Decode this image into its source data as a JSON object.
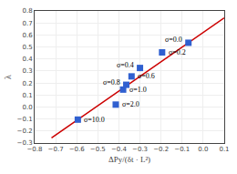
{
  "chart_data": {
    "type": "scatter",
    "xlabel": "ΔPy/(δt · L²)",
    "ylabel": "λ",
    "xlim": [
      -0.8,
      0.1
    ],
    "ylim": [
      -0.3,
      0.8
    ],
    "xticks": [
      -0.8,
      -0.7,
      -0.6,
      -0.5,
      -0.4,
      -0.3,
      -0.2,
      -0.1,
      {
        "value": 0,
        "label": "0.0"
      },
      0.1
    ],
    "yticks": [
      -0.3,
      -0.2,
      -0.1,
      {
        "value": 0,
        "label": "0.0"
      },
      0.1,
      0.2,
      0.3,
      0.4,
      0.5,
      0.6,
      0.7,
      0.8
    ],
    "grid": true,
    "background_color": "#ffffff",
    "series": [
      {
        "type": "line",
        "color": "#cc0000",
        "line_style": "solid",
        "x": [
          -0.72,
          0.1
        ],
        "values": [
          -0.2573809523809524,
          0.7422380952380953
        ]
      },
      {
        "type": "scatter",
        "color": "#3060d0",
        "marker": "square",
        "x": [
          -0.595,
          -0.415,
          -0.38,
          -0.365,
          -0.34,
          -0.3,
          -0.195,
          -0.07
        ],
        "values": [
          -0.105,
          0.02,
          0.145,
          0.185,
          0.255,
          0.325,
          0.455,
          0.535
        ]
      }
    ],
    "annotations": [
      {
        "x": -0.595,
        "y": -0.105,
        "text": "σ=10.0"
      },
      {
        "x": -0.415,
        "y": 0.02,
        "text": "σ=2.0"
      },
      {
        "x": -0.38,
        "y": 0.145,
        "text": "σ=1.0"
      },
      {
        "x": -0.365,
        "y": 0.185,
        "text": "σ=0.8"
      },
      {
        "x": -0.34,
        "y": 0.255,
        "text": "σ=0.6"
      },
      {
        "x": -0.3,
        "y": 0.325,
        "text": "σ=0.4"
      },
      {
        "x": -0.195,
        "y": 0.455,
        "text": "σ=0.2"
      },
      {
        "x": -0.07,
        "y": 0.535,
        "text": "σ=0.0"
      }
    ]
  }
}
